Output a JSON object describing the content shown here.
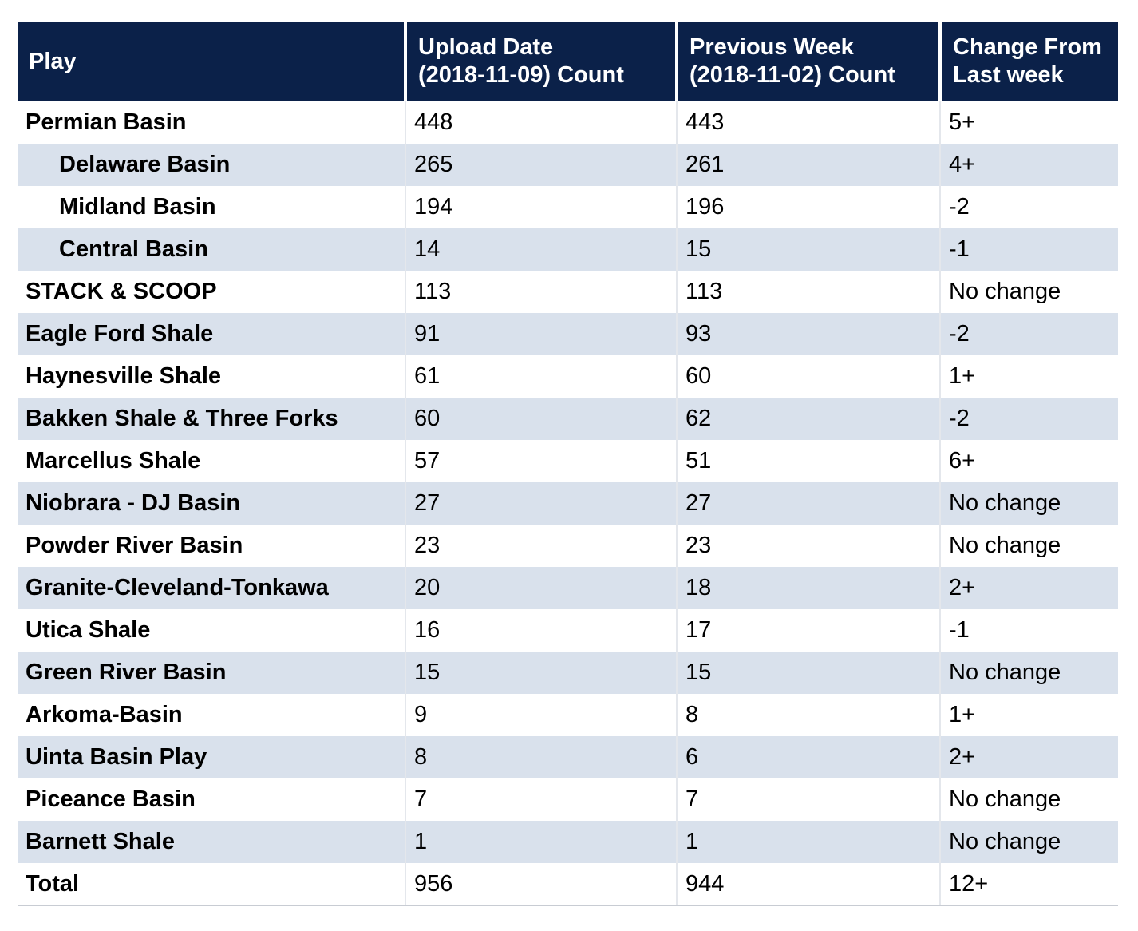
{
  "colors": {
    "header_bg": "#0b2149",
    "row_alt_bg": "#d9e1ec",
    "increase": "#1f8a1f",
    "decrease": "#e8151b",
    "no_change": "#c8143c"
  },
  "table": {
    "headers": {
      "play": "Play",
      "upload_line1": "Upload Date",
      "upload_line2": "(2018-11-09) Count",
      "previous_line1": "Previous Week",
      "previous_line2": "(2018-11-02) Count",
      "change_line1": "Change From",
      "change_line2": "Last week"
    },
    "rows": [
      {
        "play": "Permian Basin",
        "upload": "448",
        "previous": "443",
        "change": "5+",
        "trend": "up",
        "sub": false
      },
      {
        "play": "Delaware Basin",
        "upload": "265",
        "previous": "261",
        "change": "4+",
        "trend": "up",
        "sub": true
      },
      {
        "play": "Midland Basin",
        "upload": "194",
        "previous": "196",
        "change": "-2",
        "trend": "down",
        "sub": true
      },
      {
        "play": "Central Basin",
        "upload": "14",
        "previous": "15",
        "change": "-1",
        "trend": "down",
        "sub": true
      },
      {
        "play": "STACK & SCOOP",
        "upload": "113",
        "previous": "113",
        "change": "No change",
        "trend": "none",
        "sub": false
      },
      {
        "play": "Eagle Ford Shale",
        "upload": "91",
        "previous": "93",
        "change": "-2",
        "trend": "down",
        "sub": false
      },
      {
        "play": "Haynesville Shale",
        "upload": "61",
        "previous": "60",
        "change": "1+",
        "trend": "up",
        "sub": false
      },
      {
        "play": "Bakken Shale & Three Forks",
        "upload": "60",
        "previous": "62",
        "change": "-2",
        "trend": "down",
        "sub": false
      },
      {
        "play": "Marcellus Shale",
        "upload": "57",
        "previous": "51",
        "change": "6+",
        "trend": "up",
        "sub": false
      },
      {
        "play": "Niobrara - DJ Basin",
        "upload": "27",
        "previous": "27",
        "change": "No change",
        "trend": "none",
        "sub": false
      },
      {
        "play": "Powder River Basin",
        "upload": "23",
        "previous": "23",
        "change": "No change",
        "trend": "none",
        "sub": false
      },
      {
        "play": "Granite-Cleveland-Tonkawa",
        "upload": "20",
        "previous": "18",
        "change": "2+",
        "trend": "up",
        "sub": false
      },
      {
        "play": "Utica Shale",
        "upload": "16",
        "previous": "17",
        "change": "-1",
        "trend": "down",
        "sub": false
      },
      {
        "play": "Green River Basin",
        "upload": "15",
        "previous": "15",
        "change": "No change",
        "trend": "none",
        "sub": false
      },
      {
        "play": "Arkoma-Basin",
        "upload": "9",
        "previous": "8",
        "change": "1+",
        "trend": "up",
        "sub": false
      },
      {
        "play": "Uinta Basin Play",
        "upload": "8",
        "previous": "6",
        "change": "2+",
        "trend": "up",
        "sub": false
      },
      {
        "play": "Piceance Basin",
        "upload": "7",
        "previous": "7",
        "change": "No change",
        "trend": "none",
        "sub": false
      },
      {
        "play": "Barnett Shale",
        "upload": "1",
        "previous": "1",
        "change": "No change",
        "trend": "none",
        "sub": false
      },
      {
        "play": "Total",
        "upload": "956",
        "previous": "944",
        "change": "12+",
        "trend": "up",
        "sub": false
      }
    ]
  }
}
